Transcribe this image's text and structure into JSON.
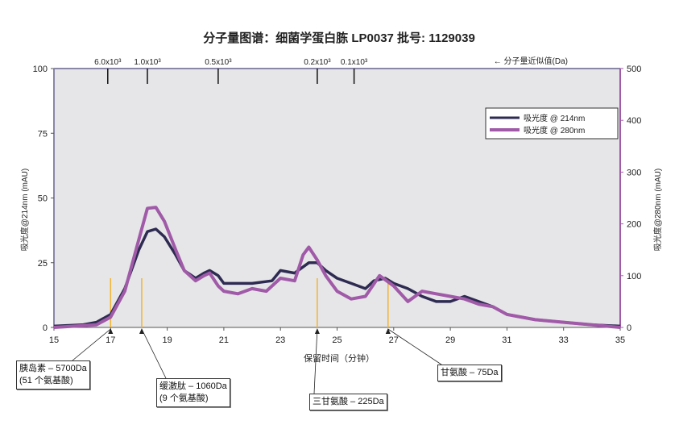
{
  "chart_data": {
    "type": "line",
    "title": "分子量图谱：细菌学蛋白胨 LP0037  批号: 1129039",
    "xlabel": "保留时间（分钟）",
    "ylabel": "吸光度@214nm (mAU)",
    "y2label": "吸光度@280nm (mAU)",
    "xlim": [
      15,
      35
    ],
    "ylim": [
      0,
      100
    ],
    "y2lim": [
      0,
      500
    ],
    "xticks": [
      "15",
      "17",
      "19",
      "21",
      "23",
      "25",
      "27",
      "29",
      "31",
      "33",
      "35"
    ],
    "yticks": [
      "0",
      "25",
      "50",
      "75",
      "100"
    ],
    "y2ticks": [
      "0",
      "100",
      "200",
      "300",
      "400",
      "500"
    ],
    "top_axis_label": "← 分子量近似值(Da)",
    "top_markers": [
      {
        "label": "6.0x10³",
        "x": 16.9
      },
      {
        "label": "1.0x10³",
        "x": 18.3
      },
      {
        "label": "0.5x10³",
        "x": 20.8
      },
      {
        "label": "0.2x10³",
        "x": 24.3
      },
      {
        "label": "0.1x10³",
        "x": 25.6
      }
    ],
    "legend_position": "top-right",
    "series": [
      {
        "name": "吸光度 @ 214nm",
        "axis": "left",
        "color": "#2e2b52",
        "x": [
          15,
          16,
          16.5,
          17,
          17.5,
          18,
          18.3,
          18.6,
          18.9,
          19.3,
          19.6,
          20,
          20.3,
          20.5,
          20.8,
          21,
          22,
          22.7,
          23,
          23.5,
          24,
          24.3,
          24.6,
          25,
          25.5,
          26,
          26.3,
          26.7,
          27,
          27.5,
          28,
          28.5,
          29,
          29.5,
          30,
          30.5,
          31,
          32,
          33,
          34,
          35
        ],
        "y": [
          0.5,
          1,
          2,
          5,
          15,
          30,
          37,
          38,
          35,
          28,
          22,
          19,
          21,
          22,
          20,
          17,
          17,
          18,
          22,
          21,
          25,
          25,
          22,
          19,
          17,
          15,
          18,
          19,
          17,
          15,
          12,
          10,
          10,
          12,
          10,
          8,
          5,
          3,
          2,
          1,
          0.5
        ]
      },
      {
        "name": "吸光度 @ 280nm",
        "axis": "right",
        "color": "#a05aa8",
        "x": [
          15,
          16.5,
          17,
          17.5,
          18,
          18.3,
          18.6,
          18.9,
          19.3,
          19.6,
          20,
          20.3,
          20.5,
          20.8,
          21,
          21.5,
          22,
          22.5,
          23,
          23.5,
          23.8,
          24,
          24.3,
          24.6,
          25,
          25.5,
          26,
          26.5,
          27,
          27.5,
          28,
          28.5,
          29,
          29.5,
          30,
          30.5,
          31,
          32,
          33,
          34,
          35
        ],
        "y": [
          0,
          5,
          20,
          70,
          170,
          230,
          232,
          205,
          150,
          110,
          90,
          100,
          105,
          80,
          70,
          65,
          75,
          70,
          95,
          90,
          140,
          155,
          130,
          100,
          70,
          55,
          60,
          100,
          80,
          50,
          70,
          65,
          60,
          55,
          45,
          40,
          25,
          15,
          10,
          5,
          0
        ]
      }
    ],
    "reference_lines": {
      "color": "#f2b330",
      "x": [
        17,
        18.1,
        24.3,
        26.8
      ]
    },
    "annotations": [
      {
        "line1": "胰岛素 – 5700Da",
        "line2": "(51 个氨基酸)",
        "x": 17
      },
      {
        "line1": "缓激肽 – 1060Da",
        "line2": "(9 个氨基酸)",
        "x": 18.1
      },
      {
        "line1": "三甘氨酸 – 225Da",
        "line2": "",
        "x": 24.3
      },
      {
        "line1": "甘氨酸  – 75Da",
        "line2": "",
        "x": 26.8
      }
    ],
    "grid": false,
    "plot_background": "#e6e6e8"
  }
}
